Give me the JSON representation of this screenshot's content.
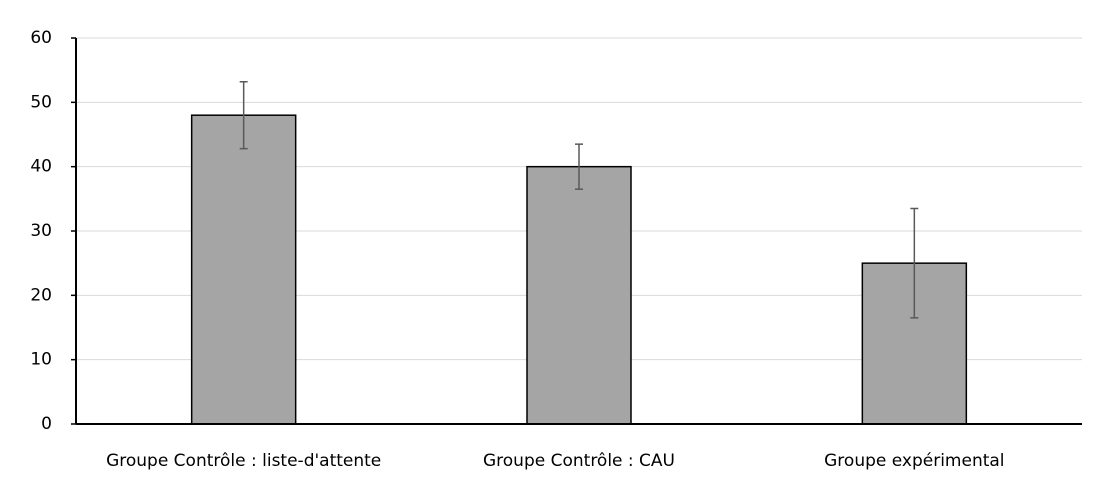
{
  "chart_data": {
    "type": "bar",
    "categories": [
      "Groupe Contrôle : liste-d'attente",
      "Groupe Contrôle : CAU",
      "Groupe expérimental"
    ],
    "values": [
      48,
      40,
      25
    ],
    "errors": [
      5.2,
      3.5,
      8.5
    ],
    "color": "#a5a5a5",
    "error_color": "#595959",
    "ylim": [
      0,
      60
    ],
    "yticks": [
      0,
      10,
      20,
      30,
      40,
      50,
      60
    ],
    "grid": true
  }
}
